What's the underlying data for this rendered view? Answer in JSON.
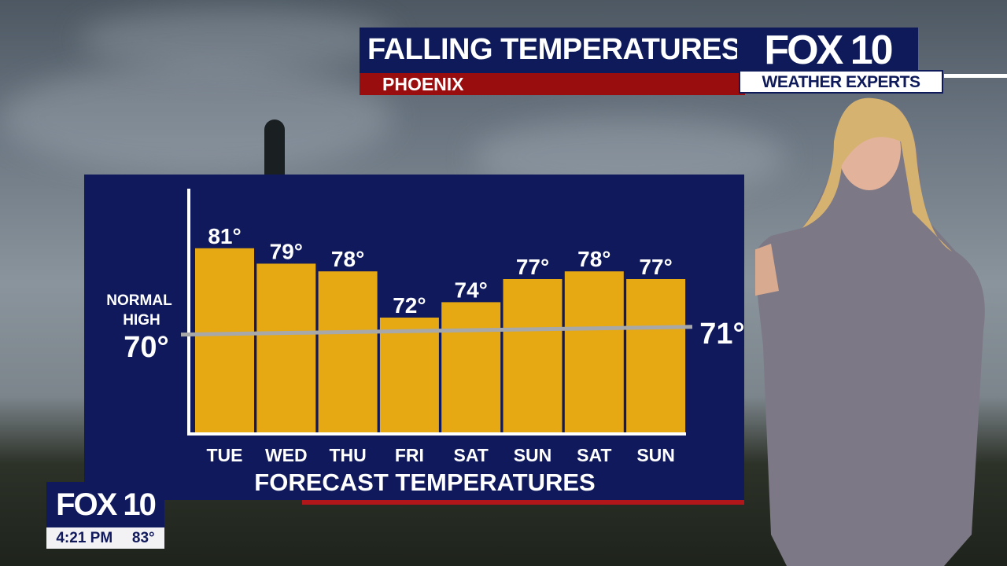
{
  "header": {
    "title": "FALLING TEMPERATURES",
    "location": "PHOENIX",
    "logo": "FOX 10",
    "badge": "WEATHER EXPERTS"
  },
  "bug": {
    "logo": "FOX 10",
    "time": "4:21 PM",
    "temp": "83°"
  },
  "colors": {
    "bar": "#e6a813",
    "panel": "#10195c",
    "header": "#0e1a5a",
    "accent_red": "#9a0d0e",
    "normal_line": "#a8a8a8"
  },
  "chart_data": {
    "type": "bar",
    "title": "FORECAST TEMPERATURES",
    "categories": [
      "TUE",
      "WED",
      "THU",
      "FRI",
      "SAT",
      "SUN",
      "SAT",
      "SUN"
    ],
    "values": [
      81,
      79,
      78,
      72,
      74,
      77,
      78,
      77
    ],
    "value_labels": [
      "81°",
      "79°",
      "78°",
      "72°",
      "74°",
      "77°",
      "78°",
      "77°"
    ],
    "unit": "°F",
    "normal_high": {
      "label_line1": "NORMAL",
      "label_line2": "HIGH",
      "start": 70,
      "end": 71,
      "start_label": "70°",
      "end_label": "71°"
    },
    "grid": false
  }
}
